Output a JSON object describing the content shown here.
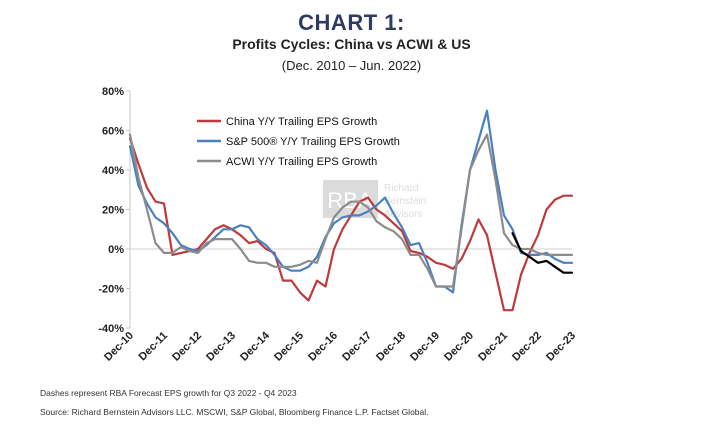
{
  "header": {
    "title": "CHART 1:",
    "subtitle": "Profits Cycles: China vs ACWI & US",
    "date_range": "(Dec. 2010 – Jun. 2022)"
  },
  "watermark": {
    "logo_text": "RBA",
    "name_line1": "Richard",
    "name_line2": "Bernstein",
    "name_line3": "Advisors"
  },
  "footnotes": {
    "forecast_note": "Dashes represent RBA Forecast EPS growth for Q3 2022 - Q4 2023",
    "source": "Source:  Richard Bernstein Advisors LLC. MSCWI, S&P Global, Bloomberg Finance L.P. Factset Global."
  },
  "chart_data": {
    "type": "line",
    "title": "Profits Cycles: China vs ACWI & US",
    "xlabel": "",
    "ylabel": "",
    "xlim": [
      0,
      52
    ],
    "ylim": [
      -40,
      80
    ],
    "grid": false,
    "legend_position": "top-left",
    "x_ticks": [
      {
        "x": 0,
        "label": "Dec-10"
      },
      {
        "x": 4,
        "label": "Dec-11"
      },
      {
        "x": 8,
        "label": "Dec-12"
      },
      {
        "x": 12,
        "label": "Dec-13"
      },
      {
        "x": 16,
        "label": "Dec-14"
      },
      {
        "x": 20,
        "label": "Dec-15"
      },
      {
        "x": 24,
        "label": "Dec-16"
      },
      {
        "x": 28,
        "label": "Dec-17"
      },
      {
        "x": 32,
        "label": "Dec-18"
      },
      {
        "x": 36,
        "label": "Dec-19"
      },
      {
        "x": 40,
        "label": "Dec-20"
      },
      {
        "x": 44,
        "label": "Dec-21"
      },
      {
        "x": 48,
        "label": "Dec-22"
      },
      {
        "x": 52,
        "label": "Dec-23"
      }
    ],
    "y_ticks": [
      {
        "y": 80,
        "label": "80%"
      },
      {
        "y": 60,
        "label": "60%"
      },
      {
        "y": 40,
        "label": "40%"
      },
      {
        "y": 20,
        "label": "20%"
      },
      {
        "y": 0,
        "label": "0%"
      },
      {
        "y": -20,
        "label": "-20%"
      },
      {
        "y": -40,
        "label": "-40%"
      }
    ],
    "series": [
      {
        "name": "China Y/Y Trailing EPS Growth",
        "color": "#c0393b",
        "x": [
          0,
          1,
          2,
          3,
          4,
          5,
          6,
          7,
          8,
          9,
          10,
          11,
          12,
          13,
          14,
          15,
          16,
          17,
          18,
          19,
          20,
          21,
          22,
          23,
          24,
          25,
          26,
          27,
          28,
          29,
          30,
          31,
          32,
          33,
          34,
          35,
          36,
          37,
          38,
          39,
          40,
          41,
          42,
          43,
          44,
          45,
          46,
          47,
          48,
          49,
          50,
          51,
          52
        ],
        "values": [
          56,
          43,
          31,
          24,
          23,
          -3,
          -2,
          -1,
          0,
          5,
          10,
          12,
          10,
          7,
          3,
          4,
          0,
          -2,
          -16,
          -16,
          -22,
          -26,
          -16,
          -19,
          0,
          10,
          17,
          24,
          26,
          20,
          17,
          13,
          9,
          -1,
          -2,
          -4,
          -7,
          -8,
          -10,
          -5,
          4,
          15,
          7,
          -12,
          -31,
          -31,
          -13,
          -2,
          7,
          20,
          25,
          27,
          27
        ]
      },
      {
        "name": "S&P 500® Y/Y Trailing EPS Growth",
        "color": "#4a80c0",
        "x": [
          0,
          1,
          2,
          3,
          4,
          5,
          6,
          7,
          8,
          9,
          10,
          11,
          12,
          13,
          14,
          15,
          16,
          17,
          18,
          19,
          20,
          21,
          22,
          23,
          24,
          25,
          26,
          27,
          28,
          29,
          30,
          31,
          32,
          33,
          34,
          35,
          36,
          37,
          38,
          39,
          40,
          41,
          42,
          43,
          44,
          45,
          46,
          47,
          48,
          49,
          50,
          51,
          52
        ],
        "values": [
          52,
          32,
          23,
          16,
          13,
          8,
          2,
          0,
          -1,
          2,
          6,
          10,
          10,
          12,
          11,
          5,
          2,
          -3,
          -9,
          -11,
          -11,
          -9,
          -4,
          6,
          13,
          16,
          17,
          17,
          19,
          22,
          26,
          18,
          11,
          2,
          3,
          -7,
          -19,
          -19,
          -22,
          12,
          40,
          55,
          70,
          40,
          17,
          10,
          -2,
          -3,
          -3,
          -2,
          -5,
          -7,
          -7
        ]
      },
      {
        "name": "ACWI Y/Y Trailing EPS Growth",
        "color": "#8c8c8c",
        "x": [
          0,
          1,
          2,
          3,
          4,
          5,
          6,
          7,
          8,
          9,
          10,
          11,
          12,
          13,
          14,
          15,
          16,
          17,
          18,
          19,
          20,
          21,
          22,
          23,
          24,
          25,
          26,
          27,
          28,
          29,
          30,
          31,
          32,
          33,
          34,
          35,
          36,
          37,
          38,
          39,
          40,
          41,
          42,
          43,
          44,
          45,
          46,
          47,
          48,
          49,
          50,
          51,
          52
        ],
        "values": [
          58,
          36,
          20,
          3,
          -2,
          -2,
          1,
          -1,
          -2,
          3,
          5,
          5,
          5,
          0,
          -6,
          -7,
          -7,
          -9,
          -9,
          -9,
          -8,
          -6,
          -7,
          5,
          16,
          21,
          24,
          24,
          21,
          14,
          11,
          9,
          5,
          -3,
          -3,
          -10,
          -19,
          -19,
          -19,
          10,
          40,
          50,
          58,
          35,
          8,
          2,
          0,
          0,
          -2,
          -3,
          -3,
          -3,
          -3
        ]
      },
      {
        "name": "RBA Forecast (Q3 2022 - Q4 2023)",
        "color": "#000000",
        "legend": false,
        "x": [
          45,
          46,
          47,
          48,
          49,
          50,
          51,
          52
        ],
        "values": [
          8,
          -1,
          -4,
          -7,
          -6,
          -9,
          -12,
          -12
        ]
      }
    ]
  }
}
